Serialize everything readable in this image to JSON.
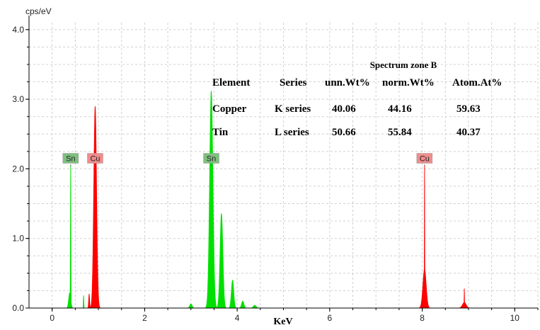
{
  "chart_data": {
    "type": "area",
    "ylabel": "cps/eV",
    "xlabel": "KeV",
    "xlim": [
      -0.5,
      10.5
    ],
    "ylim": [
      0,
      4.1
    ],
    "x_ticks": [
      "0",
      "2",
      "4",
      "6",
      "8",
      "10"
    ],
    "y_ticks": [
      "0.0",
      "1.0",
      "2.0",
      "3.0",
      "4.0"
    ],
    "grid": true,
    "series": [
      {
        "element": "Sn",
        "color": "#00e000",
        "peaks": [
          {
            "x": 0.38,
            "y": 0.22,
            "w": 0.022
          },
          {
            "x": 0.4,
            "y": 2.06,
            "w": 0.005
          },
          {
            "x": 0.68,
            "y": 0.18,
            "w": 0.005
          },
          {
            "x": 3.0,
            "y": 0.06,
            "w": 0.025
          },
          {
            "x": 3.44,
            "y": 3.12,
            "w": 0.035
          },
          {
            "x": 3.66,
            "y": 1.36,
            "w": 0.03
          },
          {
            "x": 3.9,
            "y": 0.4,
            "w": 0.025
          },
          {
            "x": 4.12,
            "y": 0.1,
            "w": 0.025
          },
          {
            "x": 4.38,
            "y": 0.04,
            "w": 0.03
          }
        ]
      },
      {
        "element": "Cu",
        "color": "#ff0000",
        "peaks": [
          {
            "x": 0.8,
            "y": 0.2,
            "w": 0.01
          },
          {
            "x": 0.93,
            "y": 2.9,
            "w": 0.03
          },
          {
            "x": 8.05,
            "y": 2.06,
            "w": 0.004
          },
          {
            "x": 8.05,
            "y": 0.56,
            "w": 0.035
          },
          {
            "x": 8.91,
            "y": 0.08,
            "w": 0.04
          },
          {
            "x": 8.91,
            "y": 0.28,
            "w": 0.004
          }
        ]
      }
    ],
    "peak_labels": [
      {
        "text": "Sn",
        "x": 0.4,
        "y": 2.06,
        "bg": "#7fbf7f"
      },
      {
        "text": "Cu",
        "x": 0.93,
        "y": 2.06,
        "bg": "#f08c8c"
      },
      {
        "text": "Sn",
        "x": 3.44,
        "y": 2.06,
        "bg": "#7fbf7f"
      },
      {
        "text": "Cu",
        "x": 8.05,
        "y": 2.06,
        "bg": "#f08c8c"
      }
    ],
    "inset_table": {
      "caption": "Spectrum zone B",
      "headers": [
        "Element",
        "Series",
        "unn.Wt%",
        "norm.Wt%",
        "Atom.At%"
      ],
      "rows": [
        [
          "Copper",
          "K series",
          "40.06",
          "44.16",
          "59.63"
        ],
        [
          "Tin",
          "L series",
          "50.66",
          "55.84",
          "40.37"
        ]
      ]
    }
  }
}
